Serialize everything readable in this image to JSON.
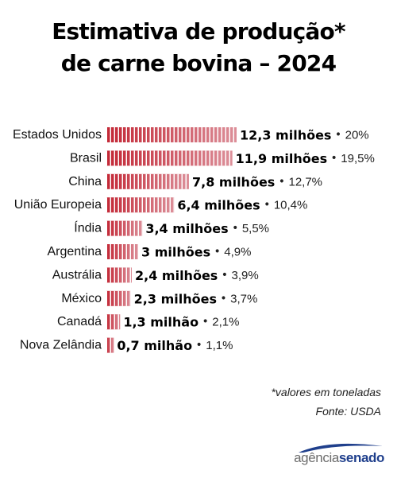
{
  "title": {
    "line1": "Estimativa de produção*",
    "line2": "de carne bovina – 2024"
  },
  "notes": {
    "unit": "*valores em toneladas",
    "source": "Fonte: USDA"
  },
  "logo": {
    "part1": "agência",
    "part2": "senado"
  },
  "colors": {
    "bar_dark": "#c32836",
    "bar_light": "#dc8f99",
    "logo_blue": "#1f3f8c",
    "logo_gray": "#6d6d6d"
  },
  "chart_data": {
    "type": "bar",
    "orientation": "horizontal",
    "categories": [
      "Estados Unidos",
      "Brasil",
      "China",
      "União Europeia",
      "Índia",
      "Argentina",
      "Austrália",
      "México",
      "Canadá",
      "Nova Zelândia"
    ],
    "values": [
      12.3,
      11.9,
      7.8,
      6.4,
      3.4,
      3.0,
      2.4,
      2.3,
      1.3,
      0.7
    ],
    "value_labels": [
      "12,3 milhões",
      "11,9 milhões",
      "7,8 milhões",
      "6,4 milhões",
      "3,4 milhões",
      "3 milhões",
      "2,4 milhões",
      "2,3 milhões",
      "1,3 milhão",
      "0,7 milhão"
    ],
    "share_labels": [
      "20%",
      "19,5%",
      "12,7%",
      "10,4%",
      "5,5%",
      "4,9%",
      "3,9%",
      "3,7%",
      "2,1%",
      "1,1%"
    ],
    "title": "",
    "xlabel": "",
    "ylabel": "",
    "grid": false,
    "legend": "none"
  }
}
